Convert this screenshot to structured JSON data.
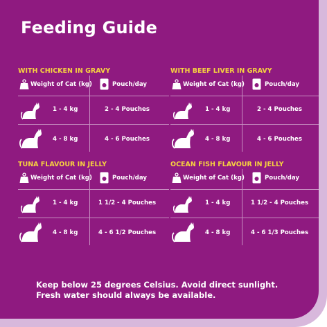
{
  "title": "Feeding Guide",
  "sections": [
    {
      "name": "WITH CHICKEN IN GRAVY",
      "header": {
        "weight": "Weight of Cat (kg)",
        "pouch": "Pouch/day"
      },
      "rows": [
        {
          "weight": "1 - 4 kg",
          "pouch": "2 - 4 Pouches"
        },
        {
          "weight": "4 - 8 kg",
          "pouch": "4 - 6 Pouches"
        }
      ]
    },
    {
      "name": "WITH BEEF LIVER IN GRAVY",
      "header": {
        "weight": "Weight of Cat (kg)",
        "pouch": "Pouch/day"
      },
      "rows": [
        {
          "weight": "1 - 4 kg",
          "pouch": "2 - 4 Pouches"
        },
        {
          "weight": "4 - 8 kg",
          "pouch": "4 - 6 Pouches"
        }
      ]
    },
    {
      "name": "TUNA FLAVOUR IN JELLY",
      "header": {
        "weight": "Weight of Cat (kg)",
        "pouch": "Pouch/day"
      },
      "rows": [
        {
          "weight": "1 - 4 kg",
          "pouch": "1 1/2 - 4 Pouches"
        },
        {
          "weight": "4 - 8 kg",
          "pouch": "4 - 6 1/2 Pouches"
        }
      ]
    },
    {
      "name": "OCEAN FISH FLAVOUR IN JELLY",
      "header": {
        "weight": "Weight of Cat (kg)",
        "pouch": "Pouch/day"
      },
      "rows": [
        {
          "weight": "1 - 4 kg",
          "pouch": "1 1/2 - 4 Pouches"
        },
        {
          "weight": "4 - 8 kg",
          "pouch": "4 - 6 1/3 Pouches"
        }
      ]
    }
  ],
  "footer": {
    "line1": "Keep below 25 degrees Celsius.  Avoid direct sunlight.",
    "line2": "Fresh water should always be available."
  },
  "colors": {
    "panel": "#8f1a80",
    "border": "#d8b8dc",
    "section_title": "#f7d33f",
    "text": "#ffffff",
    "lines": "#c890c2"
  },
  "icons": [
    "weight-scale-icon",
    "pouch-icon",
    "small-cat-icon",
    "large-cat-icon"
  ]
}
